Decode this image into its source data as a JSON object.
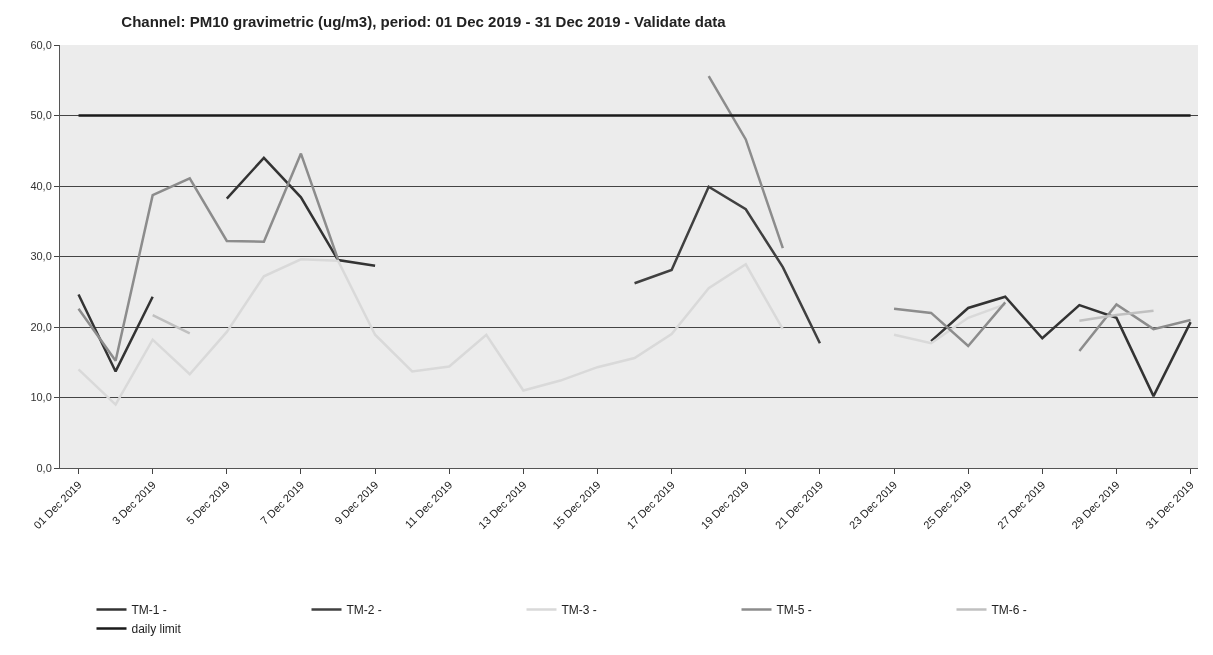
{
  "chart_data": {
    "type": "line",
    "title": "Channel: PM10 gravimetric (ug/m3), period: 01 Dec 2019 - 31 Dec 2019 - Validate data",
    "categories": [
      "01 Dec 2019",
      null,
      "3 Dec 2019",
      null,
      "5 Dec 2019",
      null,
      "7 Dec 2019",
      null,
      "9 Dec 2019",
      null,
      "11 Dec 2019",
      null,
      "13 Dec 2019",
      null,
      "15 Dec 2019",
      null,
      "17 Dec 2019",
      null,
      "19 Dec 2019",
      null,
      "21 Dec 2019",
      null,
      "23 Dec 2019",
      null,
      "25 Dec 2019",
      null,
      "27 Dec 2019",
      null,
      "29 Dec 2019",
      null,
      "31 Dec 2019"
    ],
    "series": [
      {
        "name": "TM-1 -",
        "color": "#333333",
        "values": [
          24.6,
          13.7,
          24.3,
          null,
          38.2,
          44.0,
          38.4,
          29.5,
          28.7,
          null,
          null,
          null,
          null,
          null,
          null,
          null,
          null,
          null,
          null,
          null,
          null,
          null,
          null,
          18.0,
          22.7,
          24.3,
          18.4,
          23.1,
          21.3,
          10.2,
          20.7
        ]
      },
      {
        "name": "TM-2 -",
        "color": "#404040",
        "values": [
          null,
          null,
          null,
          null,
          null,
          null,
          null,
          null,
          null,
          null,
          null,
          null,
          null,
          null,
          null,
          26.2,
          28.1,
          39.9,
          36.7,
          28.5,
          17.7,
          null,
          null,
          null,
          null,
          null,
          null,
          null,
          null,
          null,
          null
        ]
      },
      {
        "name": "TM-3 -",
        "color": "#d9d9d9",
        "values": [
          14.0,
          9.0,
          18.2,
          13.3,
          19.3,
          27.2,
          29.6,
          29.4,
          18.9,
          13.7,
          14.4,
          18.9,
          11.0,
          12.4,
          14.3,
          15.6,
          19.0,
          25.5,
          28.9,
          19.7,
          null,
          null,
          18.9,
          17.7,
          21.3,
          23.2,
          null,
          null,
          null,
          null,
          null
        ]
      },
      {
        "name": "TM-5 -",
        "color": "#8c8c8c",
        "values": [
          22.6,
          15.2,
          38.7,
          41.1,
          32.2,
          32.1,
          44.6,
          29.6,
          null,
          null,
          null,
          null,
          null,
          null,
          null,
          null,
          null,
          55.6,
          46.6,
          31.2,
          null,
          null,
          22.6,
          22.0,
          17.3,
          23.5,
          null,
          16.6,
          23.2,
          19.7,
          21.0
        ]
      },
      {
        "name": "TM-6 -",
        "color": "#c0c0c0",
        "values": [
          null,
          null,
          21.7,
          19.1,
          null,
          null,
          null,
          null,
          null,
          null,
          null,
          null,
          null,
          null,
          null,
          null,
          null,
          null,
          null,
          null,
          null,
          null,
          null,
          null,
          null,
          null,
          null,
          20.9,
          21.7,
          22.3,
          null
        ]
      },
      {
        "name": "daily limit",
        "color": "#1a1a1a",
        "values": [
          50,
          50,
          50,
          50,
          50,
          50,
          50,
          50,
          50,
          50,
          50,
          50,
          50,
          50,
          50,
          50,
          50,
          50,
          50,
          50,
          50,
          50,
          50,
          50,
          50,
          50,
          50,
          50,
          50,
          50,
          50
        ]
      }
    ],
    "ylim": [
      0,
      60
    ],
    "yticks": [
      {
        "value": 0,
        "label": "0,0"
      },
      {
        "value": 10,
        "label": "10,0"
      },
      {
        "value": 20,
        "label": "20,0"
      },
      {
        "value": 30,
        "label": "30,0"
      },
      {
        "value": 40,
        "label": "40,0"
      },
      {
        "value": 50,
        "label": "50,0"
      },
      {
        "value": 60,
        "label": "60,0"
      }
    ],
    "grid": "y",
    "legend": "bottom",
    "marker": "none",
    "line_style": "solid"
  }
}
